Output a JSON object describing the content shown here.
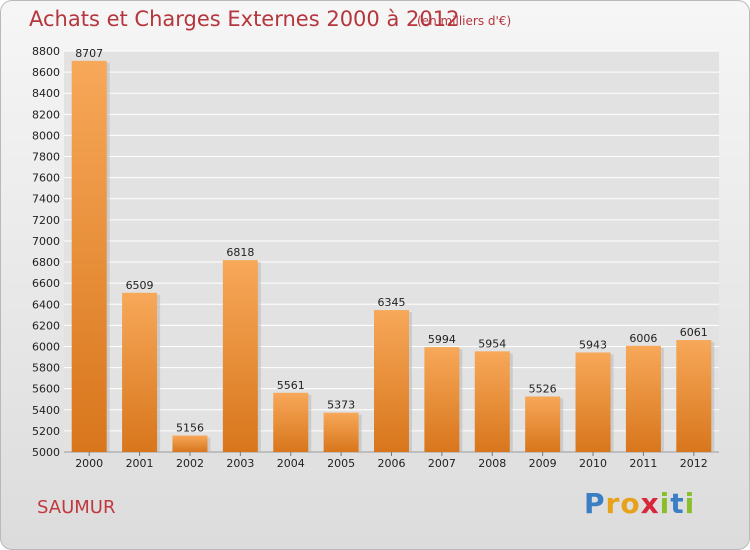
{
  "header": {
    "title": "Achats et Charges Externes 2000 à 2012",
    "subtitle": "(en milliers d'€)"
  },
  "footer": {
    "city": "SAUMUR",
    "logo": "Proxiti"
  },
  "colors": {
    "bar_light": "#f7a859",
    "bar_dark": "#d8761c",
    "grid": "#ffffff",
    "title": "#b5363d"
  },
  "chart_data": {
    "type": "bar",
    "categories": [
      "2000",
      "2001",
      "2002",
      "2003",
      "2004",
      "2005",
      "2006",
      "2007",
      "2008",
      "2009",
      "2010",
      "2011",
      "2012"
    ],
    "values": [
      8707,
      6509,
      5156,
      6818,
      5561,
      5373,
      6345,
      5994,
      5954,
      5526,
      5943,
      6006,
      6061
    ],
    "ylim": [
      5000,
      8800
    ],
    "yticks": [
      5000,
      5200,
      5400,
      5600,
      5800,
      6000,
      6200,
      6400,
      6600,
      6800,
      7000,
      7200,
      7400,
      7600,
      7800,
      8000,
      8200,
      8400,
      8600,
      8800
    ],
    "grid": true
  }
}
